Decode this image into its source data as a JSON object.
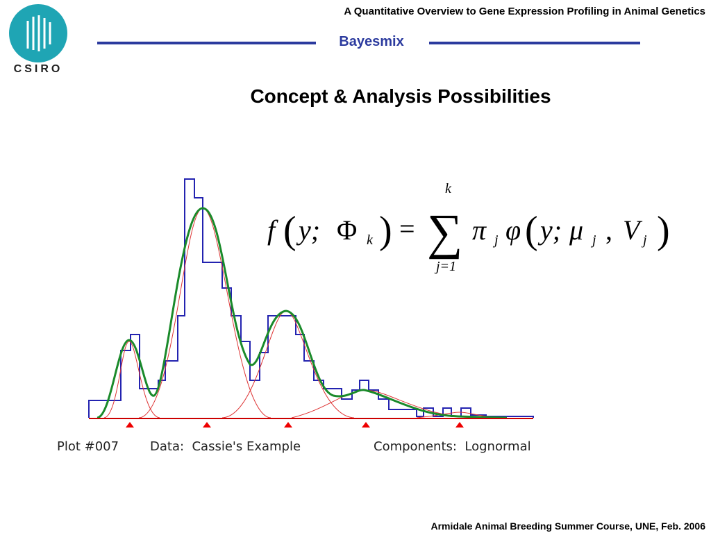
{
  "header": {
    "title": "A Quantitative Overview to Gene Expression Profiling in Animal Genetics",
    "section": "Bayesmix",
    "logo": "CSIRO"
  },
  "slide": {
    "heading": "Concept & Analysis Possibilities"
  },
  "formula": {
    "pieces": [
      "f",
      "(",
      "y;",
      "Φ",
      "k",
      ")",
      "=",
      "∑",
      "k",
      "j=1",
      "π",
      "j",
      "φ",
      "(",
      "y;",
      "μ",
      "j",
      ",",
      "V",
      "j",
      ")"
    ]
  },
  "figure": {
    "caption": [
      "Plot #007",
      "Data:  Cassie's Example",
      "Components:  Lognormal"
    ]
  },
  "footer": {
    "text": "Armidale Animal Breeding Summer Course, UNE, Feb. 2006"
  }
}
